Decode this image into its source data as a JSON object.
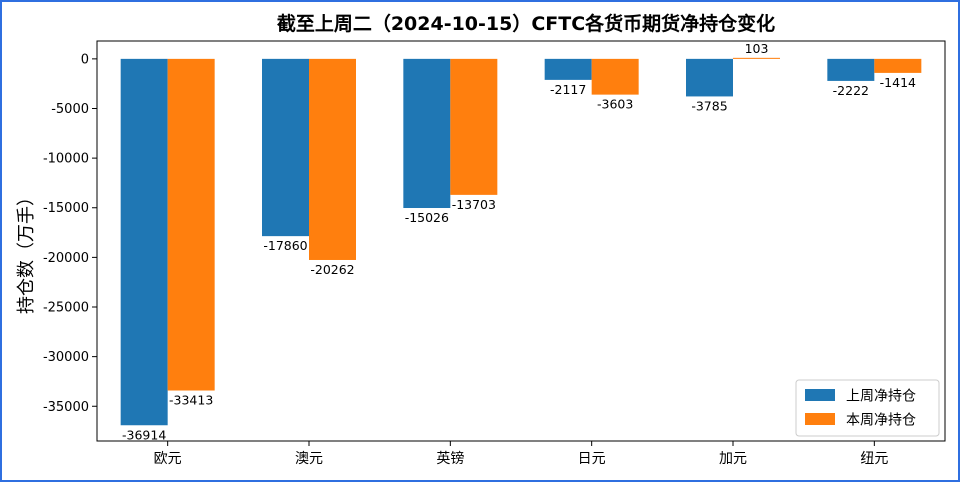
{
  "chart_data": {
    "type": "bar",
    "title": "截至上周二（2024-10-15）CFTC各货币期货净持仓变化",
    "xlabel": "",
    "ylabel": "持仓数（万手）",
    "categories": [
      "欧元",
      "澳元",
      "英镑",
      "日元",
      "加元",
      "纽元"
    ],
    "series": [
      {
        "name": "上周净持仓",
        "color": "#1f77b4",
        "values": [
          -36914,
          -17860,
          -15026,
          -2117,
          -3785,
          -2222
        ]
      },
      {
        "name": "本周净持仓",
        "color": "#ff7f0e",
        "values": [
          -33413,
          -20262,
          -13703,
          -3603,
          103,
          -1414
        ]
      }
    ],
    "ylim": [
      -38500,
      1800
    ],
    "yticks": [
      0,
      -5000,
      -10000,
      -15000,
      -20000,
      -25000,
      -30000,
      -35000
    ],
    "grid": false,
    "legend_position": "lower-right"
  }
}
